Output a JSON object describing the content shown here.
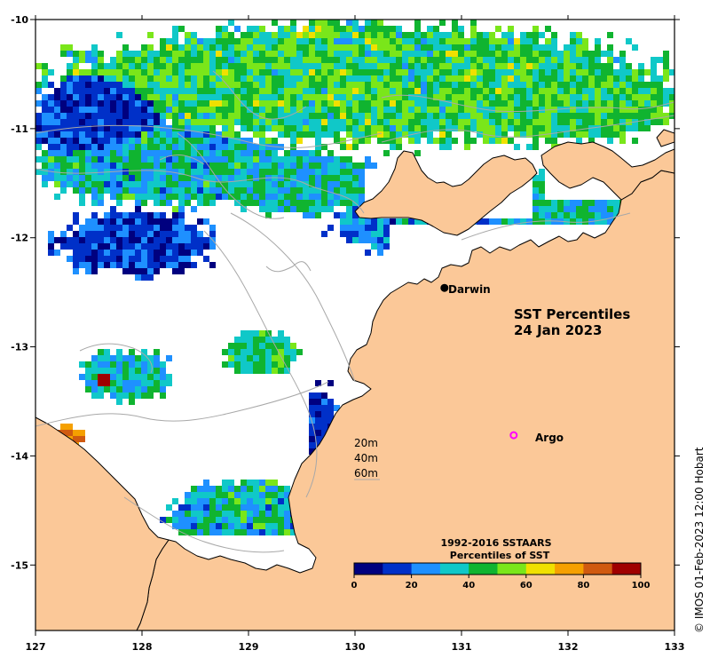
{
  "map": {
    "title_line1": "SST Percentiles",
    "title_line2": "24 Jan 2023",
    "credit": "© IMOS 01-Feb-2023 12:00 Hobart",
    "lon_ticks": [
      "127",
      "128",
      "129",
      "130",
      "131",
      "132",
      "133"
    ],
    "lat_ticks": [
      "-10",
      "-11",
      "-12",
      "-13",
      "-14",
      "-15"
    ],
    "places": [
      {
        "name": "Darwin",
        "lon": 130.84,
        "lat": -12.46,
        "marker": "black-dot"
      },
      {
        "name": "Argo",
        "lon": 131.49,
        "lat": -13.81,
        "marker": "magenta-circle"
      }
    ],
    "contour_labels": [
      "20m",
      "40m",
      "60m"
    ]
  },
  "colorbar": {
    "title_line1": "1992-2016 SSTAARS",
    "title_line2": "Percentiles of SST",
    "ticks": [
      "0",
      "20",
      "40",
      "60",
      "80",
      "100"
    ],
    "colors": [
      "#00007f",
      "#0030c8",
      "#1e90ff",
      "#10c8c8",
      "#10b430",
      "#7ae61a",
      "#f0e000",
      "#f5a000",
      "#d05a10",
      "#a00000"
    ]
  },
  "colors": {
    "land": "#fbc898",
    "no_data": "#ffffff"
  }
}
